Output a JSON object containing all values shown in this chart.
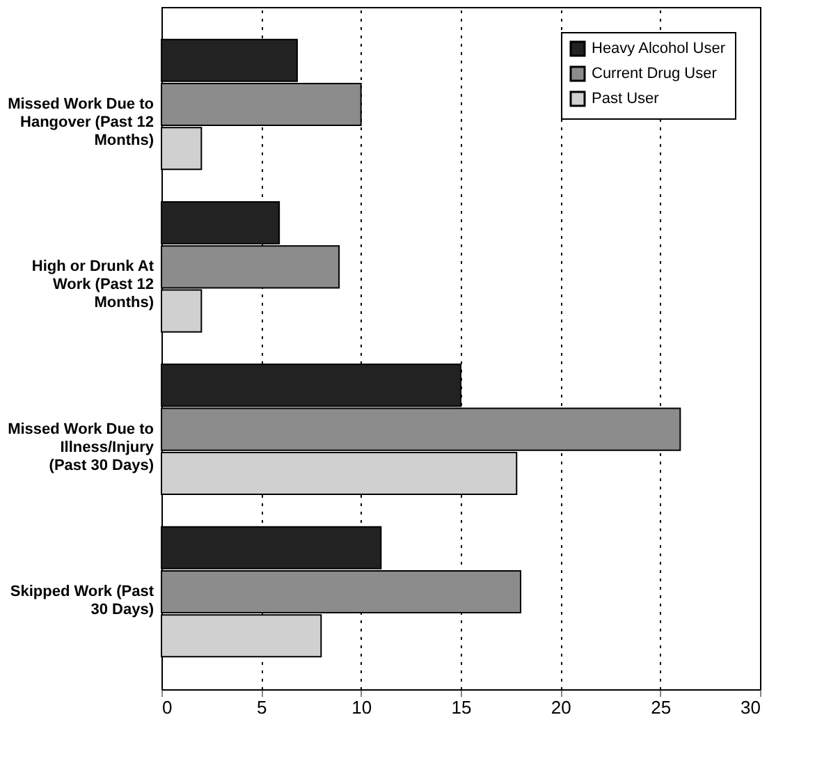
{
  "chart_data": {
    "type": "bar",
    "orientation": "horizontal",
    "categories": [
      "Missed Work Due to Hangover (Past 12 Months)",
      "High or Drunk At Work (Past 12 Months)",
      "Missed Work Due to Illness/Injury (Past 30 Days)",
      "Skipped Work (Past 30 Days)"
    ],
    "series": [
      {
        "name": "Heavy Alcohol User",
        "color": "#222222",
        "values": [
          6.8,
          5.9,
          15,
          11
        ]
      },
      {
        "name": "Current Drug User",
        "color": "#8c8c8c",
        "values": [
          10,
          8.9,
          26,
          18
        ]
      },
      {
        "name": "Past User",
        "color": "#d0d0d0",
        "values": [
          2,
          2,
          17.8,
          8
        ]
      }
    ],
    "xlim": [
      0,
      30
    ],
    "xticks": [
      0,
      5,
      10,
      15,
      20,
      25,
      30
    ],
    "grid": "x",
    "legend": "top right"
  }
}
